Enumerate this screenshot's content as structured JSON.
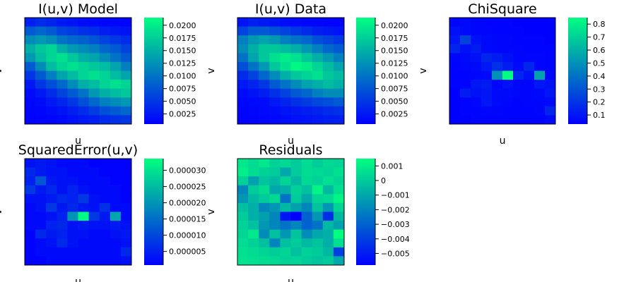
{
  "chart_data": [
    {
      "type": "heatmap",
      "title": "I(u,v) Model",
      "xlabel": "u",
      "ylabel": "v",
      "colormap": [
        "#0000ff",
        "#00ff80"
      ],
      "colorbar": {
        "min": 0.0005,
        "max": 0.0215,
        "ticks": [
          0.0025,
          0.005,
          0.0075,
          0.01,
          0.0125,
          0.015,
          0.0175,
          0.02
        ],
        "tick_labels": [
          "0.0025",
          "0.0050",
          "0.0075",
          "0.0100",
          "0.0125",
          "0.0150",
          "0.0175",
          "0.0200"
        ]
      },
      "z": [
        [
          0.003,
          0.004,
          0.0035,
          0.0025,
          0.002,
          0.0015,
          0.0012,
          0.001,
          0.001,
          0.0008
        ],
        [
          0.008,
          0.009,
          0.008,
          0.006,
          0.0055,
          0.0045,
          0.004,
          0.003,
          0.0025,
          0.002
        ],
        [
          0.012,
          0.013,
          0.012,
          0.01,
          0.009,
          0.0085,
          0.0075,
          0.006,
          0.005,
          0.004
        ],
        [
          0.015,
          0.017,
          0.018,
          0.015,
          0.013,
          0.012,
          0.011,
          0.009,
          0.008,
          0.006
        ],
        [
          0.013,
          0.016,
          0.018,
          0.019,
          0.017,
          0.015,
          0.014,
          0.012,
          0.01,
          0.008
        ],
        [
          0.008,
          0.012,
          0.016,
          0.018,
          0.019,
          0.018,
          0.017,
          0.016,
          0.014,
          0.011
        ],
        [
          0.005,
          0.008,
          0.011,
          0.014,
          0.016,
          0.018,
          0.019,
          0.018,
          0.016,
          0.014
        ],
        [
          0.0025,
          0.005,
          0.007,
          0.009,
          0.012,
          0.015,
          0.016,
          0.018,
          0.019,
          0.018
        ],
        [
          0.0015,
          0.0025,
          0.004,
          0.006,
          0.008,
          0.01,
          0.013,
          0.015,
          0.016,
          0.017
        ],
        [
          0.001,
          0.0015,
          0.0025,
          0.0035,
          0.005,
          0.007,
          0.009,
          0.011,
          0.012,
          0.013
        ],
        [
          0.0008,
          0.001,
          0.0015,
          0.002,
          0.003,
          0.004,
          0.0055,
          0.007,
          0.008,
          0.009
        ],
        [
          0.0006,
          0.0008,
          0.001,
          0.0012,
          0.0018,
          0.0025,
          0.003,
          0.004,
          0.0045,
          0.005
        ]
      ]
    },
    {
      "type": "heatmap",
      "title": "I(u,v) Data",
      "xlabel": "u",
      "ylabel": "v",
      "colormap": [
        "#0000ff",
        "#00ff80"
      ],
      "colorbar": {
        "min": 0.0005,
        "max": 0.0215,
        "ticks": [
          0.0025,
          0.005,
          0.0075,
          0.01,
          0.0125,
          0.015,
          0.0175,
          0.02
        ],
        "tick_labels": [
          "0.0025",
          "0.0050",
          "0.0075",
          "0.0100",
          "0.0125",
          "0.0150",
          "0.0175",
          "0.0200"
        ]
      },
      "z": [
        [
          0.002,
          0.003,
          0.0025,
          0.002,
          0.0015,
          0.0012,
          0.001,
          0.001,
          0.0008,
          0.0006
        ],
        [
          0.006,
          0.008,
          0.008,
          0.007,
          0.006,
          0.005,
          0.004,
          0.003,
          0.0025,
          0.002
        ],
        [
          0.011,
          0.013,
          0.014,
          0.013,
          0.011,
          0.01,
          0.009,
          0.007,
          0.006,
          0.005
        ],
        [
          0.012,
          0.015,
          0.017,
          0.017,
          0.016,
          0.015,
          0.013,
          0.011,
          0.009,
          0.008
        ],
        [
          0.01,
          0.014,
          0.017,
          0.019,
          0.02,
          0.019,
          0.017,
          0.015,
          0.013,
          0.011
        ],
        [
          0.007,
          0.01,
          0.013,
          0.017,
          0.019,
          0.021,
          0.02,
          0.018,
          0.016,
          0.014
        ],
        [
          0.004,
          0.006,
          0.009,
          0.012,
          0.015,
          0.017,
          0.018,
          0.019,
          0.017,
          0.016
        ],
        [
          0.0025,
          0.0035,
          0.005,
          0.008,
          0.01,
          0.012,
          0.014,
          0.015,
          0.016,
          0.015
        ],
        [
          0.0015,
          0.002,
          0.003,
          0.0045,
          0.006,
          0.008,
          0.009,
          0.011,
          0.012,
          0.012
        ],
        [
          0.001,
          0.0012,
          0.0015,
          0.0025,
          0.0035,
          0.0045,
          0.0055,
          0.0065,
          0.007,
          0.008
        ],
        [
          0.0008,
          0.001,
          0.0012,
          0.0015,
          0.002,
          0.0025,
          0.003,
          0.0035,
          0.004,
          0.0045
        ],
        [
          0.0006,
          0.0008,
          0.001,
          0.0012,
          0.0015,
          0.0018,
          0.002,
          0.0025,
          0.0028,
          0.003
        ]
      ]
    },
    {
      "type": "heatmap",
      "title": "ChiSquare",
      "xlabel": "u",
      "ylabel": "v",
      "colormap": [
        "#0000ff",
        "#00ff80"
      ],
      "colorbar": {
        "min": 0.03,
        "max": 0.85,
        "ticks": [
          0.1,
          0.2,
          0.3,
          0.4,
          0.5,
          0.6,
          0.7,
          0.8
        ],
        "tick_labels": [
          "0.1",
          "0.2",
          "0.3",
          "0.4",
          "0.5",
          "0.6",
          "0.7",
          "0.8"
        ]
      },
      "z": [
        [
          0.05,
          0.06,
          0.05,
          0.04,
          0.04,
          0.04,
          0.03,
          0.03,
          0.03,
          0.03
        ],
        [
          0.08,
          0.06,
          0.05,
          0.05,
          0.04,
          0.04,
          0.04,
          0.03,
          0.03,
          0.03
        ],
        [
          0.1,
          0.25,
          0.08,
          0.06,
          0.05,
          0.05,
          0.04,
          0.04,
          0.04,
          0.03
        ],
        [
          0.15,
          0.08,
          0.12,
          0.06,
          0.05,
          0.05,
          0.05,
          0.04,
          0.04,
          0.04
        ],
        [
          0.05,
          0.06,
          0.08,
          0.15,
          0.12,
          0.08,
          0.05,
          0.05,
          0.05,
          0.04
        ],
        [
          0.04,
          0.05,
          0.06,
          0.1,
          0.18,
          0.12,
          0.06,
          0.15,
          0.05,
          0.04
        ],
        [
          0.04,
          0.04,
          0.05,
          0.06,
          0.5,
          0.85,
          0.15,
          0.08,
          0.55,
          0.05
        ],
        [
          0.04,
          0.04,
          0.1,
          0.12,
          0.05,
          0.08,
          0.05,
          0.05,
          0.1,
          0.08
        ],
        [
          0.03,
          0.12,
          0.08,
          0.1,
          0.06,
          0.06,
          0.05,
          0.05,
          0.06,
          0.1
        ],
        [
          0.03,
          0.04,
          0.05,
          0.1,
          0.06,
          0.05,
          0.04,
          0.05,
          0.05,
          0.06
        ],
        [
          0.03,
          0.04,
          0.04,
          0.05,
          0.05,
          0.04,
          0.04,
          0.04,
          0.05,
          0.15
        ],
        [
          0.03,
          0.03,
          0.04,
          0.04,
          0.04,
          0.04,
          0.04,
          0.04,
          0.04,
          0.06
        ]
      ]
    },
    {
      "type": "heatmap",
      "title": "SquaredError(u,v)",
      "xlabel": "u",
      "ylabel": "v",
      "colormap": [
        "#0000ff",
        "#00ff80"
      ],
      "colorbar": {
        "min": 8e-07,
        "max": 3.36e-05,
        "ticks": [
          5e-06,
          1e-05,
          1.5e-05,
          2e-05,
          2.5e-05,
          3e-05
        ],
        "tick_labels": [
          "0.000005",
          "0.000010",
          "0.000015",
          "0.000020",
          "0.000025",
          "0.000030"
        ]
      },
      "z": [
        [
          3e-06,
          4e-06,
          3e-06,
          2e-06,
          2e-06,
          2e-06,
          1e-06,
          1e-06,
          1e-06,
          1e-06
        ],
        [
          6e-06,
          4e-06,
          3e-06,
          3e-06,
          2e-06,
          2e-06,
          2e-06,
          1e-06,
          1e-06,
          1e-06
        ],
        [
          5e-06,
          1.2e-05,
          4e-06,
          3e-06,
          3e-06,
          2e-06,
          2e-06,
          2e-06,
          1e-06,
          1e-06
        ],
        [
          8e-06,
          4e-06,
          6e-06,
          3e-06,
          5e-06,
          3e-06,
          2e-06,
          2e-06,
          2e-06,
          1e-06
        ],
        [
          3e-06,
          3e-06,
          4e-06,
          6e-06,
          5e-06,
          8e-06,
          3e-06,
          2e-06,
          2e-06,
          1e-06
        ],
        [
          2e-06,
          3e-06,
          8e-06,
          4e-06,
          6e-06,
          4e-06,
          3e-06,
          7e-06,
          2e-06,
          2e-06
        ],
        [
          2e-06,
          2e-06,
          3e-06,
          5e-06,
          2e-05,
          3.3e-05,
          8e-06,
          4e-06,
          2.2e-05,
          2e-06
        ],
        [
          2e-06,
          2e-06,
          5e-06,
          6e-06,
          3e-06,
          4e-06,
          3e-06,
          3e-06,
          4e-06,
          3e-06
        ],
        [
          1e-06,
          6e-06,
          4e-06,
          5e-06,
          3e-06,
          3e-06,
          2e-06,
          2e-06,
          3e-06,
          4e-06
        ],
        [
          1e-06,
          2e-06,
          3e-06,
          6e-06,
          3e-06,
          2e-06,
          2e-06,
          2e-06,
          2e-06,
          3e-06
        ],
        [
          1e-06,
          2e-06,
          2e-06,
          2e-06,
          2e-06,
          2e-06,
          2e-06,
          2e-06,
          2e-06,
          6e-06
        ],
        [
          1e-06,
          1e-06,
          2e-06,
          2e-06,
          2e-06,
          2e-06,
          2e-06,
          2e-06,
          2e-06,
          3e-06
        ]
      ]
    },
    {
      "type": "heatmap",
      "title": "Residuals",
      "xlabel": "u",
      "ylabel": "v",
      "colormap": [
        "#0000ff",
        "#00ff80"
      ],
      "colorbar": {
        "min": -0.0058,
        "max": 0.0015,
        "ticks": [
          -0.005,
          -0.004,
          -0.003,
          -0.002,
          -0.001,
          0,
          0.001
        ],
        "tick_labels": [
          "−0.005",
          "−0.004",
          "−0.003",
          "−0.002",
          "−0.001",
          "0",
          "0.001"
        ]
      },
      "z": [
        [
          0.0008,
          0.0005,
          0.0008,
          0.0002,
          0.0004,
          0.0,
          0.0005,
          0.0001,
          0.0004,
          0.0003
        ],
        [
          0.001,
          0.0005,
          0.0002,
          0.0,
          -0.001,
          0.0,
          0.0005,
          0.0004,
          0.0003,
          0.0006
        ],
        [
          0.0002,
          -0.0012,
          -0.0002,
          -0.0005,
          0.0003,
          -0.0005,
          0.0004,
          0.0002,
          0.0006,
          0.0003
        ],
        [
          -0.002,
          0.0,
          0.0005,
          -0.001,
          -0.0008,
          0.0002,
          -0.0003,
          0.0012,
          -0.0005,
          0.0006
        ],
        [
          -0.0015,
          -0.0005,
          0.0,
          0.0004,
          -0.0025,
          0.0,
          -0.001,
          0.0003,
          0.0004,
          0.0012
        ],
        [
          -0.0003,
          -0.0008,
          -0.002,
          -0.0015,
          -0.0005,
          -0.0012,
          -0.002,
          -0.0002,
          -0.0015,
          0.0003
        ],
        [
          0.0,
          -0.0008,
          -0.0012,
          -0.002,
          -0.0052,
          -0.0058,
          -0.003,
          -0.0015,
          -0.0045,
          -0.0005
        ],
        [
          0.0002,
          -0.0003,
          -0.0015,
          -0.002,
          -0.0025,
          -0.002,
          -0.003,
          -0.0025,
          -0.0005,
          -0.0012
        ],
        [
          0.0003,
          0.0008,
          -0.0018,
          -0.0003,
          -0.0015,
          -0.0002,
          -0.0018,
          -0.001,
          -0.0008,
          0.0015
        ],
        [
          0.0005,
          0.0002,
          -0.0003,
          -0.002,
          -0.0003,
          0.0,
          -0.0005,
          -0.0002,
          -0.0008,
          0.0006
        ],
        [
          0.0006,
          0.0005,
          0.0003,
          0.0001,
          0.0003,
          -0.0003,
          0.0002,
          0.0,
          -0.0005,
          -0.004
        ],
        [
          0.0007,
          0.0006,
          0.0005,
          0.0004,
          0.0002,
          0.0003,
          0.0,
          -0.0002,
          0.0,
          -0.001
        ]
      ]
    }
  ]
}
